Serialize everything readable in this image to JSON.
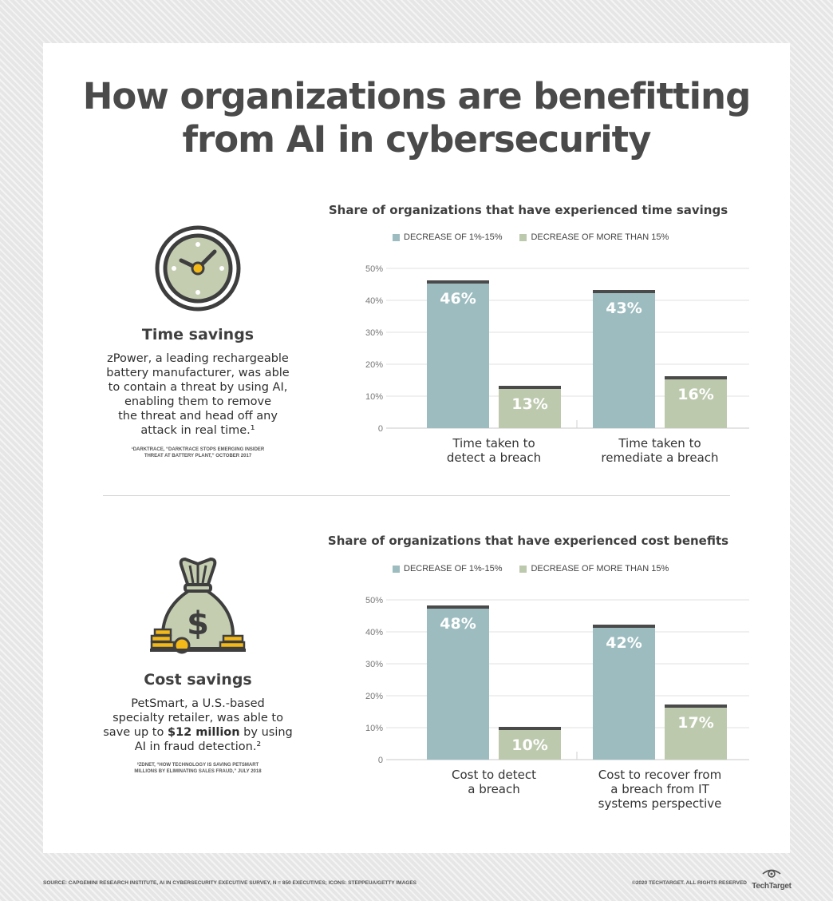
{
  "title_line1": "How organizations are benefitting",
  "title_line2": "from AI in cybersecurity",
  "time_section": {
    "heading": "Time savings",
    "desc_lines": [
      "zPower, a leading rechargeable",
      "battery manufacturer, was able",
      "to contain a threat by using AI,",
      "enabling them to remove",
      "the threat and head off any",
      "attack in real time.¹"
    ],
    "footnote_lines": [
      "¹DARKTRACE, “DARKTRACE STOPS EMERGING INSIDER",
      "THREAT AT BATTERY PLANT,” OCTOBER 2017"
    ],
    "icon": "clock-icon"
  },
  "cost_section": {
    "heading": "Cost savings",
    "desc_line1": "PetSmart, a U.S.-based",
    "desc_line2": "specialty retailer, was able to",
    "desc_line3_pre": "save up to ",
    "desc_line3_bold": "$12 million",
    "desc_line3_post": " by using",
    "desc_line4": "AI in fraud detection.²",
    "footnote_lines": [
      "²ZDNET, “HOW TECHNOLOGY IS SAVING PETSMART",
      "MILLIONS BY ELIMINATING SALES FRAUD,” JULY 2018"
    ],
    "icon": "money-bag-icon"
  },
  "colors": {
    "series1": "#9dbcbf",
    "series2": "#bcc9ad",
    "cap": "#4a4a4b",
    "title": "#4a4a4b",
    "icon_fill": "#c4cdb0",
    "coin": "#f2b918"
  },
  "legend": {
    "series1": "DECREASE OF 1%-15%",
    "series2": "DECREASE OF MORE THAN 15%"
  },
  "chart_data": [
    {
      "type": "bar",
      "title": "Share of organizations that have experienced time savings",
      "categories": [
        [
          "Time taken to",
          "detect a breach"
        ],
        [
          "Time taken to",
          "remediate a breach"
        ]
      ],
      "series": [
        {
          "name": "DECREASE OF 1%-15%",
          "values": [
            46,
            43
          ],
          "labels": [
            "46%",
            "43%"
          ]
        },
        {
          "name": "DECREASE OF MORE THAN 15%",
          "values": [
            13,
            16
          ],
          "labels": [
            "13%",
            "16%"
          ]
        }
      ],
      "ylim": [
        0,
        50
      ],
      "yticks": [
        "0",
        "10%",
        "20%",
        "30%",
        "40%",
        "50%"
      ],
      "grid": true,
      "legend_position": "top"
    },
    {
      "type": "bar",
      "title": "Share of organizations that have experienced cost benefits",
      "categories": [
        [
          "Cost to detect",
          "a breach"
        ],
        [
          "Cost to recover from",
          "a breach from IT",
          "systems perspective"
        ]
      ],
      "series": [
        {
          "name": "DECREASE OF 1%-15%",
          "values": [
            48,
            42
          ],
          "labels": [
            "48%",
            "42%"
          ]
        },
        {
          "name": "DECREASE OF MORE THAN 15%",
          "values": [
            10,
            17
          ],
          "labels": [
            "10%",
            "17%"
          ]
        }
      ],
      "ylim": [
        0,
        50
      ],
      "yticks": [
        "0",
        "10%",
        "20%",
        "30%",
        "40%",
        "50%"
      ],
      "grid": true,
      "legend_position": "top"
    }
  ],
  "footer": {
    "source": "SOURCE: CAPGEMINI RESEARCH INSTITUTE, AI IN CYBERSECURITY EXECUTIVE SURVEY, N = 850 EXECUTIVES; ICONS: STEPPEUA/GETTY IMAGES",
    "copyright": "©2020 TECHTARGET. ALL RIGHTS RESERVED",
    "logo_text": "TechTarget"
  }
}
